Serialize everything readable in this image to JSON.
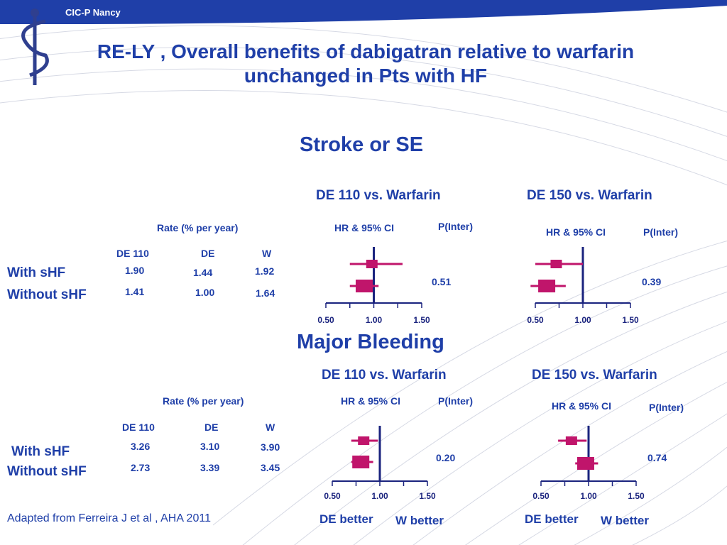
{
  "header": {
    "org": "CIC-P Nancy",
    "title": "RE-LY , Overall benefits of dabigatran relative to warfarin unchanged in Pts with HF"
  },
  "sections": [
    {
      "title": "Stroke or SE",
      "rate_header": "Rate (% per year)",
      "columns": [
        "DE 110",
        "DE",
        "W"
      ],
      "rows": [
        {
          "label": "With sHF",
          "values": [
            "1.90",
            "1.44",
            "1.92"
          ]
        },
        {
          "label": "Without sHF",
          "values": [
            "1.41",
            "1.00",
            "1.64"
          ]
        }
      ],
      "panels": [
        {
          "comparison": "DE 110 vs. Warfarin",
          "hr_label": "HR & 95% CI",
          "p_label": "P(Inter)",
          "p_value": "0.51"
        },
        {
          "comparison": "DE 150 vs. Warfarin",
          "hr_label": "HR & 95% CI",
          "p_label": "P(Inter)",
          "p_value": "0.39"
        }
      ]
    },
    {
      "title": "Major Bleeding",
      "rate_header": "Rate (% per year)",
      "columns": [
        "DE 110",
        "DE",
        "W"
      ],
      "rows": [
        {
          "label": "With sHF",
          "values": [
            "3.26",
            "3.10",
            "3.90"
          ]
        },
        {
          "label": "Without sHF",
          "values": [
            "2.73",
            "3.39",
            "3.45"
          ]
        }
      ],
      "panels": [
        {
          "comparison": "DE 110 vs. Warfarin",
          "hr_label": "HR & 95% CI",
          "p_label": "P(Inter)",
          "p_value": "0.20"
        },
        {
          "comparison": "DE 150 vs. Warfarin",
          "hr_label": "HR & 95% CI",
          "p_label": "P(Inter)",
          "p_value": "0.74"
        }
      ]
    }
  ],
  "footer": {
    "de_better": "DE better",
    "w_better": "W better",
    "citation": "Adapted from Ferreira  J et al , AHA 2011"
  },
  "chart_data": [
    {
      "type": "scatter",
      "section": "Stroke or SE",
      "comparison": "DE 110 vs. Warfarin",
      "categories": [
        "With sHF",
        "Without sHF"
      ],
      "hr": [
        0.98,
        0.9
      ],
      "ci": [
        [
          0.75,
          1.3
        ],
        [
          0.75,
          1.05
        ]
      ],
      "xlim": [
        0.5,
        1.5
      ],
      "xticks": [
        "0.50",
        "1.00",
        "1.50"
      ],
      "reference": 1.0,
      "marker_color": "#c0156b"
    },
    {
      "type": "scatter",
      "section": "Stroke or SE",
      "comparison": "DE 150 vs. Warfarin",
      "categories": [
        "With sHF",
        "Without sHF"
      ],
      "hr": [
        0.72,
        0.62
      ],
      "ci": [
        [
          0.5,
          1.0
        ],
        [
          0.45,
          0.82
        ]
      ],
      "xlim": [
        0.5,
        1.5
      ],
      "xticks": [
        "0.50",
        "1.00",
        "1.50"
      ],
      "reference": 1.0,
      "marker_color": "#c0156b"
    },
    {
      "type": "scatter",
      "section": "Major Bleeding",
      "comparison": "DE 110 vs. Warfarin",
      "categories": [
        "With sHF",
        "Without sHF"
      ],
      "hr": [
        0.83,
        0.8
      ],
      "ci": [
        [
          0.7,
          0.98
        ],
        [
          0.7,
          0.93
        ]
      ],
      "xlim": [
        0.5,
        1.5
      ],
      "xticks": [
        "0.50",
        "1.00",
        "1.50"
      ],
      "reference": 1.0,
      "marker_color": "#c0156b"
    },
    {
      "type": "scatter",
      "section": "Major Bleeding",
      "comparison": "DE 150 vs. Warfarin",
      "categories": [
        "With sHF",
        "Without sHF"
      ],
      "hr": [
        0.82,
        0.97
      ],
      "ci": [
        [
          0.68,
          0.98
        ],
        [
          0.86,
          1.1
        ]
      ],
      "xlim": [
        0.5,
        1.5
      ],
      "xticks": [
        "0.50",
        "1.00",
        "1.50"
      ],
      "reference": 1.0,
      "marker_color": "#c0156b"
    }
  ]
}
